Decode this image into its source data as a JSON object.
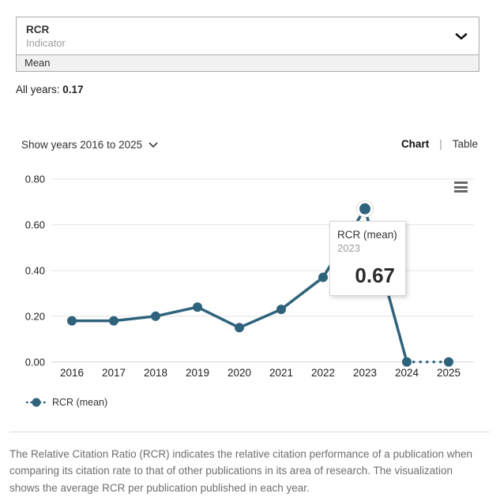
{
  "indicator_selector": {
    "value": "RCR",
    "label": "Indicator",
    "sub_option": "Mean"
  },
  "summary": {
    "label": "All years:",
    "value": "0.17"
  },
  "controls": {
    "show_years_label": "Show years 2016 to 2025",
    "tab_separator": "|",
    "tabs": [
      {
        "label": "Chart",
        "active": true
      },
      {
        "label": "Table",
        "active": false
      }
    ]
  },
  "chart_data": {
    "type": "line",
    "categories": [
      "2016",
      "2017",
      "2018",
      "2019",
      "2020",
      "2021",
      "2022",
      "2023",
      "2024",
      "2025"
    ],
    "series": [
      {
        "name": "RCR (mean)",
        "values": [
          0.18,
          0.18,
          0.2,
          0.24,
          0.15,
          0.23,
          0.37,
          0.67,
          0.0,
          0.0
        ]
      }
    ],
    "y_ticks": [
      "0.00",
      "0.20",
      "0.40",
      "0.60",
      "0.80"
    ],
    "y_tick_values": [
      0,
      0.2,
      0.4,
      0.6,
      0.8
    ],
    "ylim": [
      0,
      0.8
    ],
    "grid": true,
    "dotted_last_segment": true,
    "highlight_index": 7,
    "line_color": "#2f637c",
    "grid_color": "#e4e4e4",
    "baseline_color": "#ccd7e2",
    "axis_label_color": "#212121",
    "tooltip": {
      "series": "RCR (mean)",
      "year": "2023",
      "value": "0.67"
    },
    "legend": [
      {
        "label": "RCR (mean)"
      }
    ],
    "legend_position": "bottom-left"
  },
  "footer": {
    "text": "The Relative Citation Ratio (RCR) indicates the relative citation performance of a publication when comparing its citation rate to that of other publications in its area of research. The visualization shows the average RCR per publication published in each year."
  }
}
